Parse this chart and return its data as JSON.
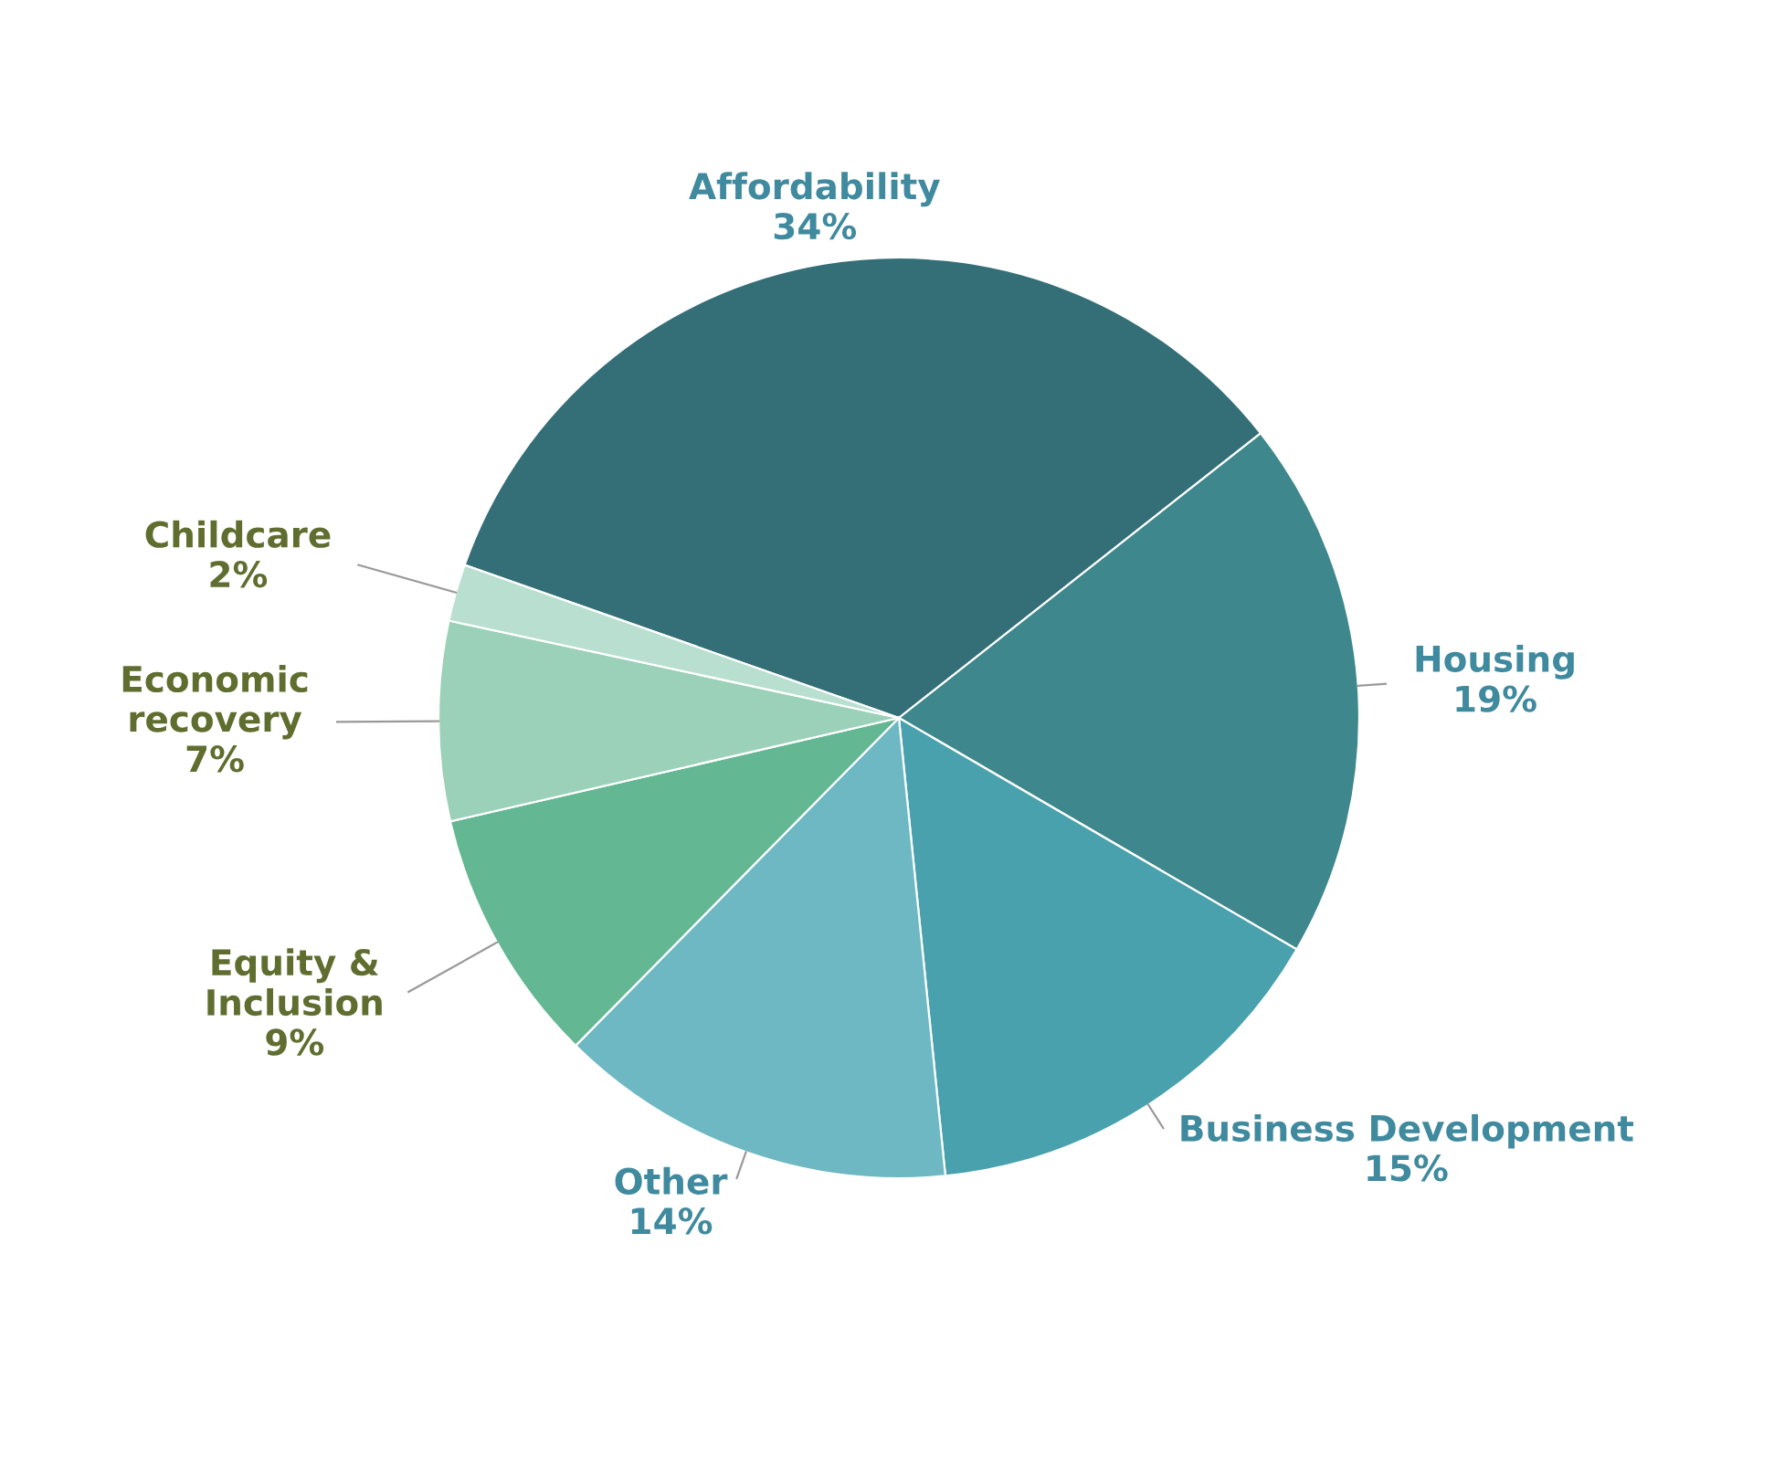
{
  "chart_data": {
    "type": "pie",
    "categories": [
      "Affordability",
      "Housing",
      "Business Development",
      "Other",
      "Equity &\nInclusion",
      "Economic\nrecovery",
      "Childcare"
    ],
    "values": [
      34,
      19,
      15,
      14,
      9,
      7,
      2
    ],
    "value_labels": [
      "34%",
      "19%",
      "15%",
      "14%",
      "9%",
      "7%",
      "2%"
    ],
    "colors": [
      "#346f77",
      "#3e878d",
      "#48a1ac",
      "#6db8c2",
      "#63b792",
      "#9ad1b8",
      "#b8dfd0"
    ]
  }
}
